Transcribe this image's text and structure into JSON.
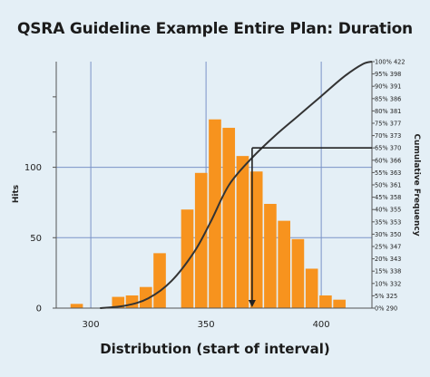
{
  "chart_data": {
    "type": "bar",
    "title": "QSRA Guideline Example Entire Plan: Duration",
    "xlabel": "Distribution (start of interval)",
    "ylabel": "Hits",
    "y2label": "Cumulative Frequency",
    "xlim": [
      285,
      422
    ],
    "ylim": [
      0,
      175
    ],
    "grid": true,
    "bar_color": "#f7931e",
    "line_color": "#333333",
    "grid_color": "#7a93c7",
    "x_ticks": [
      300,
      350,
      400
    ],
    "y_ticks": [
      0,
      50,
      100
    ],
    "bins": [
      {
        "x": 291,
        "value": 3
      },
      {
        "x": 297,
        "value": 0
      },
      {
        "x": 303,
        "value": 0
      },
      {
        "x": 309,
        "value": 8
      },
      {
        "x": 315,
        "value": 9
      },
      {
        "x": 321,
        "value": 15
      },
      {
        "x": 327,
        "value": 39
      },
      {
        "x": 333,
        "value": 0
      },
      {
        "x": 339,
        "value": 70
      },
      {
        "x": 345,
        "value": 96
      },
      {
        "x": 351,
        "value": 134
      },
      {
        "x": 357,
        "value": 128
      },
      {
        "x": 363,
        "value": 108
      },
      {
        "x": 369,
        "value": 97
      },
      {
        "x": 375,
        "value": 74
      },
      {
        "x": 381,
        "value": 62
      },
      {
        "x": 387,
        "value": 49
      },
      {
        "x": 393,
        "value": 28
      },
      {
        "x": 399,
        "value": 9
      },
      {
        "x": 405,
        "value": 6
      }
    ],
    "bin_width": 6,
    "cumulative_curve": [
      {
        "x": 304,
        "pct": 0
      },
      {
        "x": 315,
        "pct": 1
      },
      {
        "x": 325,
        "pct": 4
      },
      {
        "x": 335,
        "pct": 11
      },
      {
        "x": 345,
        "pct": 23
      },
      {
        "x": 352,
        "pct": 35
      },
      {
        "x": 360,
        "pct": 50
      },
      {
        "x": 370,
        "pct": 61
      },
      {
        "x": 380,
        "pct": 70
      },
      {
        "x": 390,
        "pct": 78
      },
      {
        "x": 400,
        "pct": 86
      },
      {
        "x": 410,
        "pct": 94
      },
      {
        "x": 418,
        "pct": 99
      },
      {
        "x": 422,
        "pct": 100
      }
    ],
    "marker": {
      "x": 370,
      "pct": 65
    },
    "cumulative_labels": [
      "0% 290",
      "5% 325",
      "10% 332",
      "15% 338",
      "20% 343",
      "25% 347",
      "30% 350",
      "35% 353",
      "40% 355",
      "45% 358",
      "50% 361",
      "55% 363",
      "60% 366",
      "65% 370",
      "70% 373",
      "75% 377",
      "80% 381",
      "85% 386",
      "90% 391",
      "95% 398",
      "100% 422"
    ]
  }
}
